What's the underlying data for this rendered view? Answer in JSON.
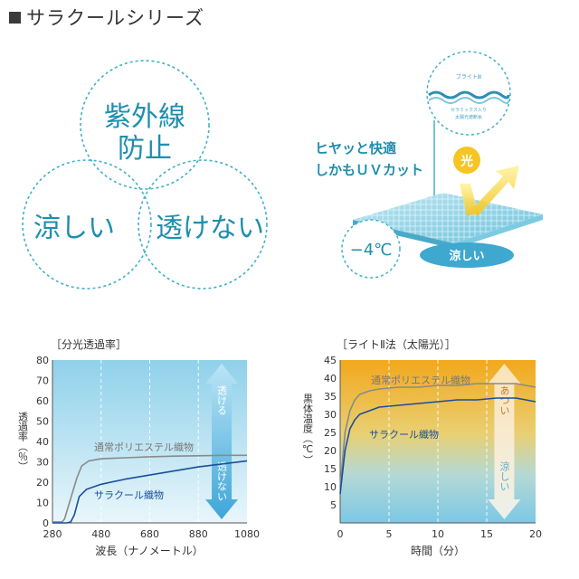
{
  "header": {
    "title": "サラクールシリーズ"
  },
  "venn": {
    "top": [
      "紫外線",
      "防止"
    ],
    "left": "涼しい",
    "right": "透けない"
  },
  "illustration": {
    "lead": [
      "ヒヤッと快適",
      "しかもＵＶカット"
    ],
    "light_badge": "光",
    "temp_badge": "−4℃",
    "cool_badge": "涼しい",
    "zoom_label_top": "ブライトⅢ",
    "zoom_label_bottom": [
      "セラミックス入り",
      "太陽光遮断糸"
    ]
  },
  "chart_data": [
    {
      "type": "line",
      "title": "［分光透過率］",
      "xlabel": "波長（ナノメートル）",
      "ylabel": "透過率（％）",
      "xlim": [
        280,
        1080
      ],
      "ylim": [
        0,
        80
      ],
      "x_ticks": [
        280,
        480,
        680,
        880,
        1080
      ],
      "y_ticks": [
        0,
        10,
        20,
        30,
        40,
        50,
        60,
        70,
        80
      ],
      "arrow_top": "透ける",
      "arrow_bottom": "透けない",
      "series": [
        {
          "name": "通常ポリエステル織物",
          "color": "#8a8a8a",
          "x": [
            280,
            320,
            330,
            350,
            380,
            400,
            430,
            480,
            580,
            680,
            780,
            880,
            980,
            1080
          ],
          "y": [
            0.5,
            0.5,
            2,
            10,
            22,
            28,
            30.5,
            31.5,
            32,
            32.5,
            32.8,
            33,
            33.2,
            33.2
          ]
        },
        {
          "name": "サラクール織物",
          "color": "#1a4f9a",
          "x": [
            280,
            340,
            355,
            370,
            390,
            420,
            480,
            580,
            680,
            780,
            880,
            980,
            1080
          ],
          "y": [
            0,
            0,
            0.5,
            4,
            13,
            16.5,
            19,
            21.5,
            23.5,
            25.5,
            27.5,
            29,
            30.5
          ]
        }
      ]
    },
    {
      "type": "line",
      "title": "［ライトⅡ法（太陽光）］",
      "xlabel": "時間（分）",
      "ylabel": "黒体温度（℃）",
      "xlim": [
        0,
        20
      ],
      "ylim": [
        0,
        45
      ],
      "x_ticks": [
        0,
        5,
        10,
        15,
        20
      ],
      "y_ticks": [
        5,
        10,
        15,
        20,
        25,
        30,
        35,
        40,
        45
      ],
      "arrow_top": "あつい",
      "arrow_bottom": "涼しい",
      "series": [
        {
          "name": "通常ポリエステル織物",
          "color": "#8a8a8a",
          "x": [
            0,
            0.2,
            0.5,
            1,
            1.5,
            2,
            3,
            4,
            6,
            8,
            10,
            12,
            14,
            16,
            18,
            20
          ],
          "y": [
            10,
            16,
            25,
            31,
            34,
            35.5,
            36.5,
            37,
            37.5,
            37.5,
            38,
            38,
            38.5,
            38.5,
            38.5,
            37.5
          ]
        },
        {
          "name": "サラクール織物",
          "color": "#1a4f9a",
          "x": [
            0,
            0.2,
            0.5,
            1,
            1.5,
            2,
            3,
            4,
            6,
            8,
            10,
            12,
            14,
            16,
            18,
            20
          ],
          "y": [
            8,
            13,
            20,
            26,
            28.5,
            30,
            31,
            32,
            32.5,
            33,
            33.5,
            34,
            34,
            34.5,
            34.5,
            33.5
          ]
        }
      ]
    }
  ]
}
